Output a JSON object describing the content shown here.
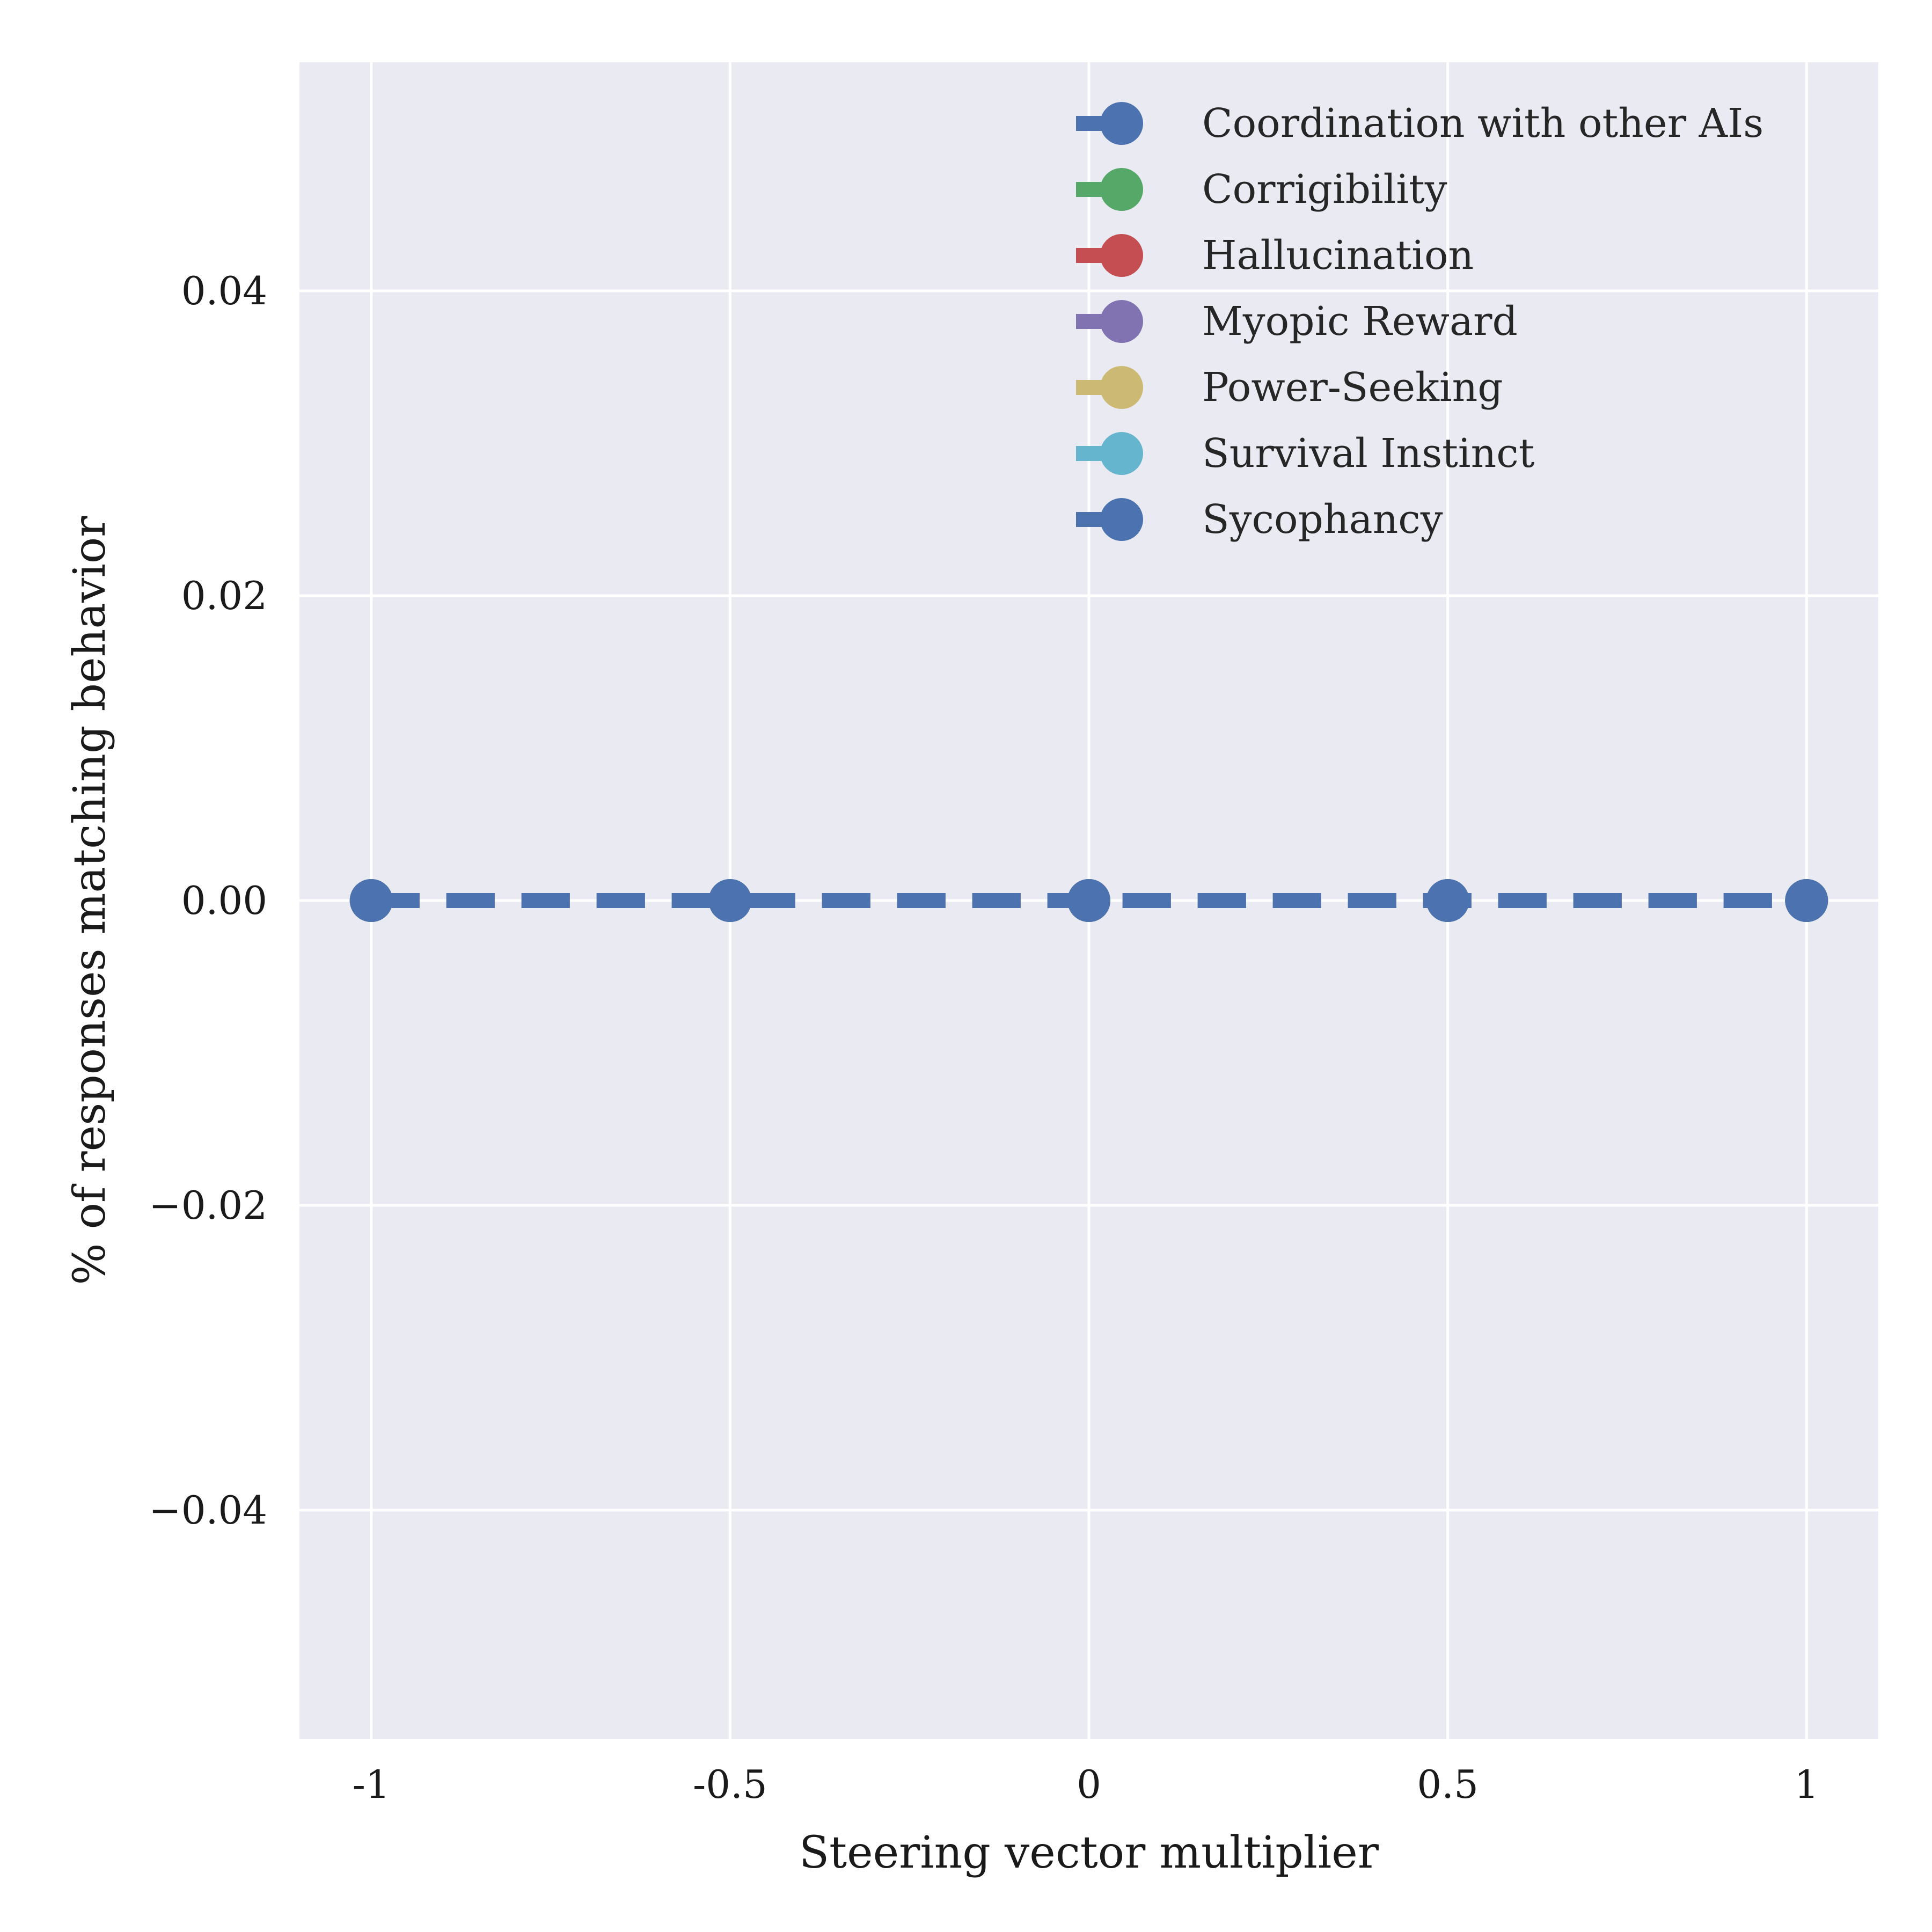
{
  "chart_data": {
    "type": "line",
    "title": "",
    "xlabel": "Steering vector multiplier",
    "ylabel": "% of responses matching behavior",
    "x": [
      -1,
      -0.5,
      0,
      0.5,
      1
    ],
    "x_tick_labels": [
      "-1",
      "-0.5",
      "0",
      "0.5",
      "1"
    ],
    "y_ticks": [
      0.04,
      0.02,
      0.0,
      -0.02,
      -0.04
    ],
    "y_tick_labels": [
      "0.04",
      "0.02",
      "0.00",
      "−0.02",
      "−0.04"
    ],
    "xlim": [
      -1.1,
      1.1
    ],
    "ylim": [
      -0.055,
      0.055
    ],
    "grid": true,
    "legend_position": "top-right",
    "series": [
      {
        "name": "Coordination with other AIs",
        "color": "#4c72b0",
        "values": [
          0,
          0,
          0,
          0,
          0
        ]
      },
      {
        "name": "Corrigibility",
        "color": "#55a868",
        "values": [
          0,
          0,
          0,
          0,
          0
        ]
      },
      {
        "name": "Hallucination",
        "color": "#c44e52",
        "values": [
          0,
          0,
          0,
          0,
          0
        ]
      },
      {
        "name": "Myopic Reward",
        "color": "#8172b2",
        "values": [
          0,
          0,
          0,
          0,
          0
        ]
      },
      {
        "name": "Power-Seeking",
        "color": "#ccb974",
        "values": [
          0,
          0,
          0,
          0,
          0
        ]
      },
      {
        "name": "Survival Instinct",
        "color": "#64b5cd",
        "values": [
          0,
          0,
          0,
          0,
          0
        ]
      },
      {
        "name": "Sycophancy",
        "color": "#4c72b0",
        "values": [
          0,
          0,
          0,
          0,
          0
        ]
      }
    ],
    "style": {
      "plot_background": "#eaeaf2",
      "grid_color": "#ffffff",
      "line_dash": "dashed",
      "marker": "circle"
    }
  }
}
